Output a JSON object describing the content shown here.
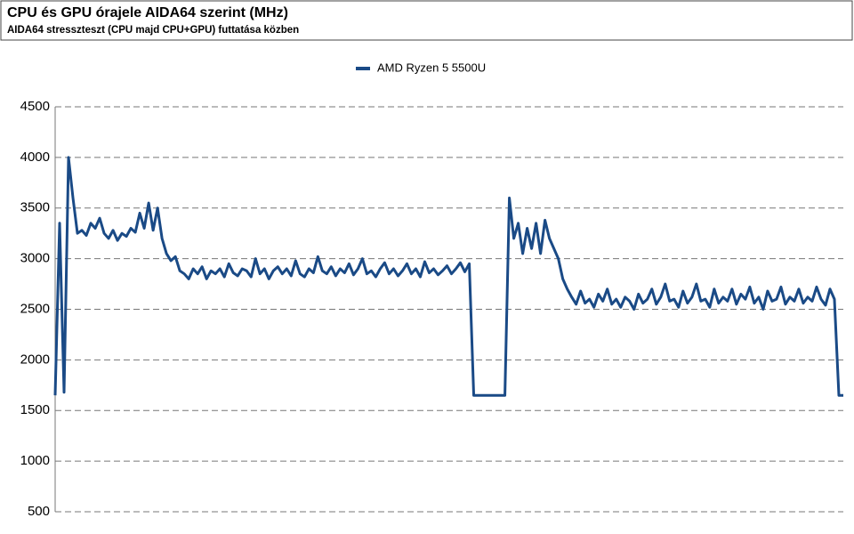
{
  "chart_data": {
    "type": "line",
    "title": "CPU és GPU órajele AIDA64 szerint (MHz)",
    "subtitle": "AIDA64 stresszteszt (CPU majd CPU+GPU) futtatása közben",
    "series": [
      {
        "name": "AMD Ryzen 5 5500U",
        "color": "#1a4a86",
        "values": [
          1650,
          3350,
          1680,
          4000,
          3600,
          3250,
          3280,
          3230,
          3350,
          3300,
          3400,
          3250,
          3200,
          3280,
          3180,
          3250,
          3220,
          3300,
          3260,
          3450,
          3300,
          3550,
          3280,
          3500,
          3200,
          3050,
          2980,
          3020,
          2880,
          2850,
          2800,
          2900,
          2850,
          2920,
          2800,
          2880,
          2850,
          2900,
          2820,
          2950,
          2860,
          2830,
          2900,
          2880,
          2820,
          3000,
          2850,
          2900,
          2800,
          2880,
          2920,
          2850,
          2900,
          2830,
          2980,
          2850,
          2820,
          2900,
          2860,
          3020,
          2880,
          2850,
          2920,
          2830,
          2900,
          2860,
          2950,
          2840,
          2900,
          3000,
          2850,
          2880,
          2820,
          2900,
          2960,
          2850,
          2900,
          2830,
          2880,
          2950,
          2850,
          2900,
          2820,
          2970,
          2860,
          2900,
          2840,
          2880,
          2930,
          2850,
          2900,
          2960,
          2870,
          2950,
          1650,
          1650,
          1650,
          1650,
          1650,
          1650,
          1650,
          1650,
          3600,
          3200,
          3350,
          3050,
          3300,
          3100,
          3350,
          3050,
          3380,
          3200,
          3100,
          3000,
          2800,
          2700,
          2620,
          2550,
          2680,
          2560,
          2600,
          2520,
          2650,
          2580,
          2700,
          2550,
          2600,
          2520,
          2620,
          2580,
          2500,
          2650,
          2560,
          2600,
          2700,
          2550,
          2620,
          2750,
          2580,
          2600,
          2520,
          2680,
          2560,
          2620,
          2750,
          2580,
          2600,
          2520,
          2700,
          2560,
          2620,
          2580,
          2700,
          2550,
          2650,
          2600,
          2720,
          2560,
          2620,
          2500,
          2680,
          2580,
          2600,
          2720,
          2550,
          2620,
          2580,
          2700,
          2560,
          2620,
          2580,
          2720,
          2600,
          2540,
          2700,
          2600,
          1650,
          1650
        ]
      }
    ],
    "ylim": [
      500,
      4500
    ],
    "yticks": [
      500,
      1000,
      1500,
      2000,
      2500,
      3000,
      3500,
      4000,
      4500
    ],
    "grid": true
  }
}
